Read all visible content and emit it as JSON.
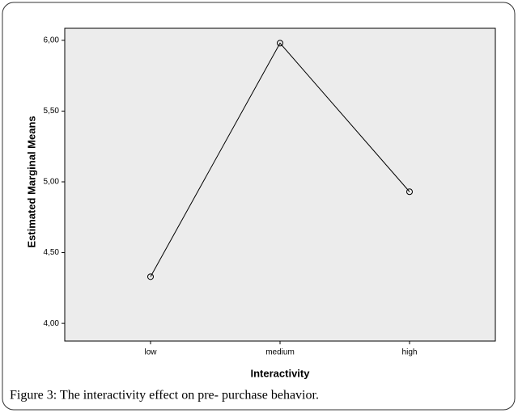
{
  "chart_data": {
    "type": "line",
    "categories": [
      "low",
      "medium",
      "high"
    ],
    "series": [
      {
        "name": "Estimated Marginal Means",
        "color": "#000000",
        "values": [
          4.33,
          5.98,
          4.93
        ]
      }
    ],
    "ylim": [
      3.875,
      6.085
    ],
    "yticks": [
      {
        "value": 4,
        "label": "4,00"
      },
      {
        "value": 4.5,
        "label": "4,50"
      },
      {
        "value": 5,
        "label": "5,00"
      },
      {
        "value": 5.5,
        "label": "5,50"
      },
      {
        "value": 6,
        "label": "6,00"
      }
    ],
    "ylabel": "Estimated Marginal Means",
    "xlabel": "Interactivity",
    "caption": "Figure 3: The interactivity effect on pre- purchase behavior."
  }
}
